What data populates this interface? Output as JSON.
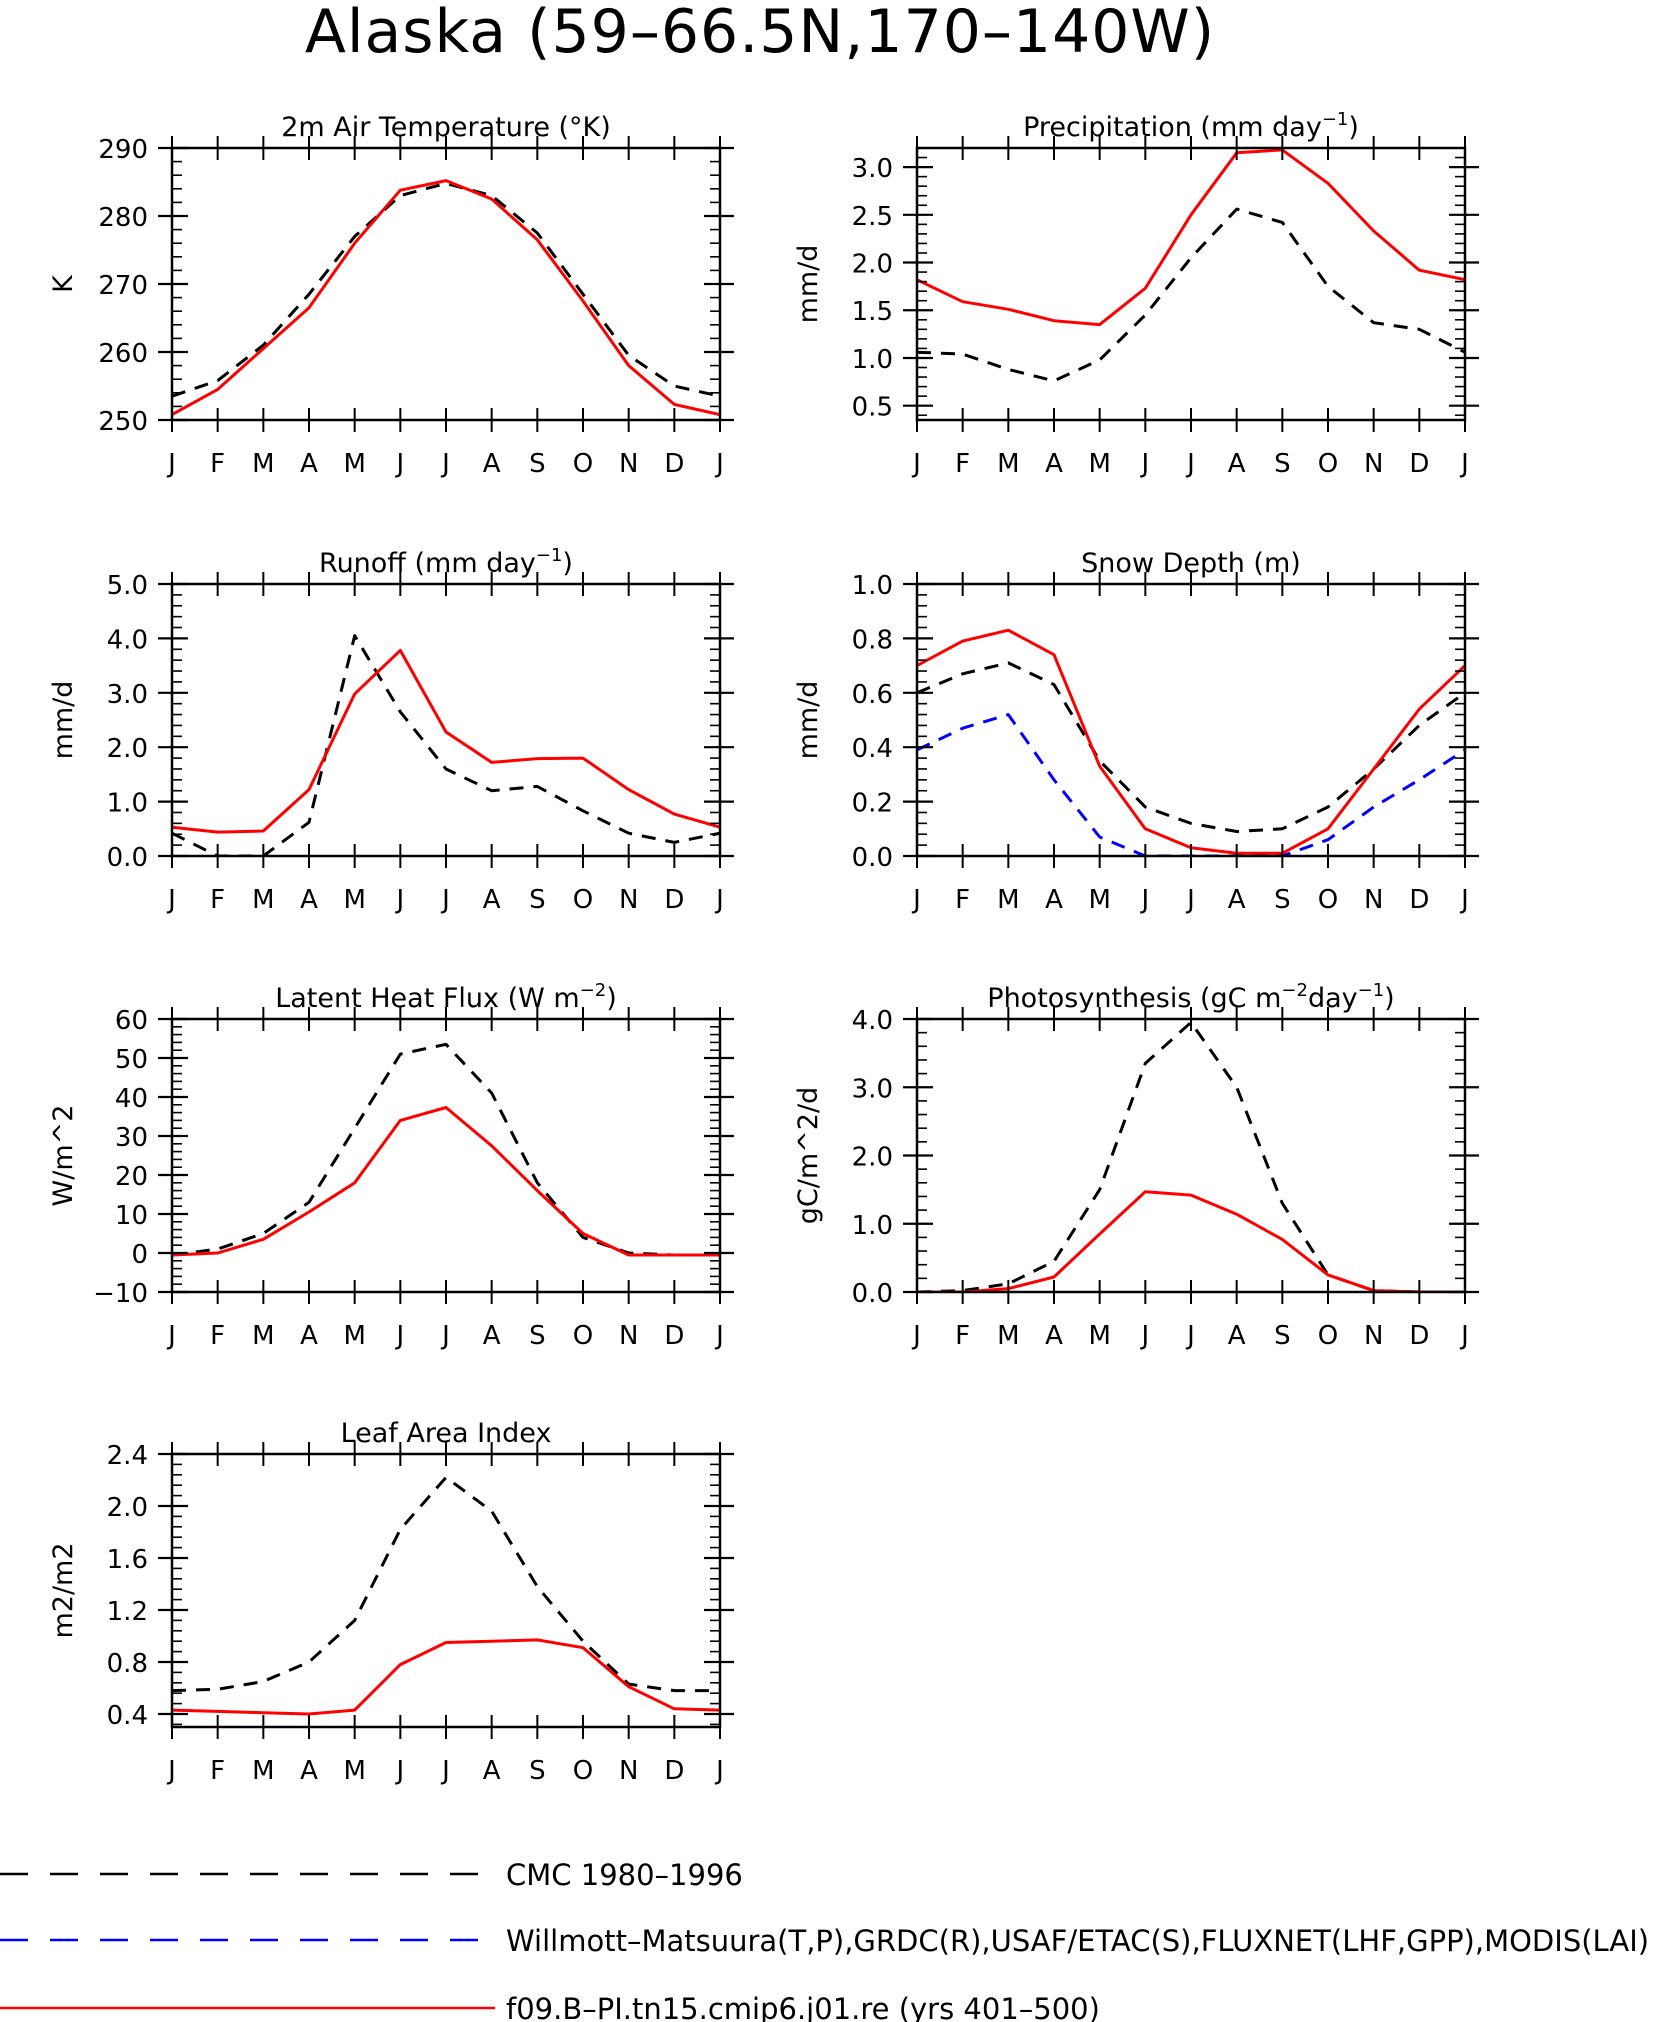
{
  "figure": {
    "title": "Alaska (59–66.5N,170–140W)"
  },
  "colors": {
    "obs": "#000000",
    "obs2": "#0000ff",
    "model": "#ff0000"
  },
  "chart_data": [
    {
      "type": "line",
      "title_main": "2m Air Temperature (°K)",
      "title_sup": "",
      "title_tail": "",
      "ylabel": "K",
      "x": [
        "J",
        "F",
        "M",
        "A",
        "M",
        "J",
        "J",
        "A",
        "S",
        "O",
        "N",
        "D",
        "J"
      ],
      "ylim": [
        250,
        290
      ],
      "yticks": [
        250,
        260,
        270,
        280,
        290
      ],
      "ytick_decimals": 0,
      "minor_step": 2,
      "series": [
        {
          "name": "CMC 1980–1996",
          "style": "dash",
          "color": "#000000",
          "values": [
            253.5,
            255.8,
            261.0,
            268.5,
            277.0,
            283.0,
            284.8,
            283.0,
            277.5,
            268.5,
            259.5,
            255.0,
            253.5
          ]
        },
        {
          "name": "f09.B–PI.tn15.cmip6.j01.re (yrs 401–500)",
          "style": "solid",
          "color": "#ff0000",
          "values": [
            250.8,
            254.5,
            260.5,
            266.5,
            276.0,
            283.8,
            285.2,
            282.5,
            276.5,
            267.5,
            258.0,
            252.3,
            250.8
          ]
        }
      ]
    },
    {
      "type": "line",
      "title_main": "Precipitation (mm day",
      "title_sup": "−1",
      "title_tail": ")",
      "ylabel": "mm/d",
      "x": [
        "J",
        "F",
        "M",
        "A",
        "M",
        "J",
        "J",
        "A",
        "S",
        "O",
        "N",
        "D",
        "J"
      ],
      "ylim": [
        0.35,
        3.2
      ],
      "yticks": [
        0.5,
        1.0,
        1.5,
        2.0,
        2.5,
        3.0
      ],
      "ytick_decimals": 1,
      "minor_step": 0.1,
      "series": [
        {
          "name": "CMC 1980–1996",
          "style": "dash",
          "color": "#000000",
          "values": [
            1.06,
            1.04,
            0.88,
            0.76,
            0.98,
            1.45,
            2.05,
            2.56,
            2.42,
            1.75,
            1.37,
            1.3,
            1.06
          ]
        },
        {
          "name": "f09.B–PI.tn15.cmip6.j01.re (yrs 401–500)",
          "style": "solid",
          "color": "#ff0000",
          "values": [
            1.82,
            1.59,
            1.51,
            1.39,
            1.35,
            1.73,
            2.5,
            3.15,
            3.18,
            2.83,
            2.33,
            1.92,
            1.82
          ]
        }
      ]
    },
    {
      "type": "line",
      "title_main": "Runoff (mm day",
      "title_sup": "−1",
      "title_tail": ")",
      "ylabel": "mm/d",
      "x": [
        "J",
        "F",
        "M",
        "A",
        "M",
        "J",
        "J",
        "A",
        "S",
        "O",
        "N",
        "D",
        "J"
      ],
      "ylim": [
        0,
        5
      ],
      "yticks": [
        0.0,
        1.0,
        2.0,
        3.0,
        4.0,
        5.0
      ],
      "ytick_decimals": 1,
      "minor_step": 0.2,
      "series": [
        {
          "name": "CMC 1980–1996",
          "style": "dash",
          "color": "#000000",
          "values": [
            0.42,
            0.0,
            0.0,
            0.62,
            4.05,
            2.65,
            1.6,
            1.2,
            1.28,
            0.83,
            0.42,
            0.25,
            0.42
          ]
        },
        {
          "name": "f09.B–PI.tn15.cmip6.j01.re (yrs 401–500)",
          "style": "solid",
          "color": "#ff0000",
          "values": [
            0.53,
            0.44,
            0.46,
            1.22,
            2.98,
            3.78,
            2.28,
            1.72,
            1.79,
            1.8,
            1.22,
            0.77,
            0.53
          ]
        }
      ]
    },
    {
      "type": "line",
      "title_main": "Snow Depth (m)",
      "title_sup": "",
      "title_tail": "",
      "ylabel": "mm/d",
      "x": [
        "J",
        "F",
        "M",
        "A",
        "M",
        "J",
        "J",
        "A",
        "S",
        "O",
        "N",
        "D",
        "J"
      ],
      "ylim": [
        0,
        1
      ],
      "yticks": [
        0.0,
        0.2,
        0.4,
        0.6,
        0.8,
        1.0
      ],
      "ytick_decimals": 1,
      "minor_step": 0.04,
      "series": [
        {
          "name": "CMC 1980–1996",
          "style": "dash",
          "color": "#000000",
          "values": [
            0.6,
            0.67,
            0.71,
            0.63,
            0.35,
            0.18,
            0.12,
            0.09,
            0.1,
            0.18,
            0.32,
            0.48,
            0.6
          ]
        },
        {
          "name": "Willmott–Matsuura(T,P),GRDC(R),USAF/ETAC(S),FLUXNET(LHF,GPP),MODIS(LAI)",
          "style": "dash",
          "color": "#0000ff",
          "values": [
            0.39,
            0.47,
            0.52,
            0.28,
            0.07,
            0.0,
            0.0,
            0.0,
            0.0,
            0.06,
            0.18,
            0.28,
            0.39
          ]
        },
        {
          "name": "f09.B–PI.tn15.cmip6.j01.re (yrs 401–500)",
          "style": "solid",
          "color": "#ff0000",
          "values": [
            0.7,
            0.79,
            0.83,
            0.74,
            0.33,
            0.1,
            0.03,
            0.01,
            0.01,
            0.1,
            0.32,
            0.54,
            0.7
          ]
        }
      ]
    },
    {
      "type": "line",
      "title_main": "Latent Heat Flux (W m",
      "title_sup": "−2",
      "title_tail": ")",
      "ylabel": "W/m^2",
      "x": [
        "J",
        "F",
        "M",
        "A",
        "M",
        "J",
        "J",
        "A",
        "S",
        "O",
        "N",
        "D",
        "J"
      ],
      "ylim": [
        -10,
        60
      ],
      "yticks": [
        -10,
        0,
        10,
        20,
        30,
        40,
        50,
        60
      ],
      "ytick_decimals": 0,
      "minor_step": 2,
      "series": [
        {
          "name": "CMC 1980–1996",
          "style": "dash",
          "color": "#000000",
          "values": [
            -0.5,
            1.0,
            5.0,
            13.0,
            32.0,
            51.0,
            53.5,
            41.0,
            18.0,
            4.0,
            0.0,
            -0.5,
            -0.5
          ]
        },
        {
          "name": "f09.B–PI.tn15.cmip6.j01.re (yrs 401–500)",
          "style": "solid",
          "color": "#ff0000",
          "values": [
            -0.5,
            0.0,
            3.5,
            10.5,
            18.0,
            34.0,
            37.3,
            27.5,
            16.0,
            5.0,
            -0.5,
            -0.5,
            -0.5
          ]
        }
      ]
    },
    {
      "type": "line",
      "title_main": "Photosynthesis (gC m",
      "title_sup": "−2",
      "title_tail": "day",
      "title_sup2": "−1",
      "title_tail2": ")",
      "ylabel": "gC/m^2/d",
      "x": [
        "J",
        "F",
        "M",
        "A",
        "M",
        "J",
        "J",
        "A",
        "S",
        "O",
        "N",
        "D",
        "J"
      ],
      "ylim": [
        0,
        4
      ],
      "yticks": [
        0.0,
        1.0,
        2.0,
        3.0,
        4.0
      ],
      "ytick_decimals": 1,
      "minor_step": 0.2,
      "series": [
        {
          "name": "CMC 1980–1996",
          "style": "dash",
          "color": "#000000",
          "values": [
            0.0,
            0.02,
            0.12,
            0.45,
            1.5,
            3.35,
            3.95,
            3.0,
            1.3,
            0.25,
            0.02,
            0.0,
            0.0
          ]
        },
        {
          "name": "f09.B–PI.tn15.cmip6.j01.re (yrs 401–500)",
          "style": "solid",
          "color": "#ff0000",
          "values": [
            0.0,
            0.0,
            0.05,
            0.22,
            0.85,
            1.47,
            1.42,
            1.14,
            0.77,
            0.25,
            0.02,
            0.0,
            0.0
          ]
        }
      ]
    },
    {
      "type": "line",
      "title_main": "Leaf Area Index",
      "title_sup": "",
      "title_tail": "",
      "ylabel": "m2/m2",
      "x": [
        "J",
        "F",
        "M",
        "A",
        "M",
        "J",
        "J",
        "A",
        "S",
        "O",
        "N",
        "D",
        "J"
      ],
      "ylim": [
        0.3,
        2.4
      ],
      "yticks": [
        0.4,
        0.8,
        1.2,
        1.6,
        2.0,
        2.4
      ],
      "ytick_decimals": 1,
      "minor_step": 0.08,
      "series": [
        {
          "name": "CMC 1980–1996",
          "style": "dash",
          "color": "#000000",
          "values": [
            0.58,
            0.59,
            0.65,
            0.8,
            1.12,
            1.82,
            2.22,
            1.96,
            1.38,
            0.96,
            0.63,
            0.58,
            0.58
          ]
        },
        {
          "name": "f09.B–PI.tn15.cmip6.j01.re (yrs 401–500)",
          "style": "solid",
          "color": "#ff0000",
          "values": [
            0.43,
            0.42,
            0.41,
            0.4,
            0.43,
            0.78,
            0.95,
            0.96,
            0.97,
            0.91,
            0.61,
            0.44,
            0.43
          ]
        }
      ]
    }
  ],
  "legend": [
    {
      "label": "CMC 1980–1996",
      "style": "dash",
      "color": "#000000"
    },
    {
      "label": "Willmott–Matsuura(T,P),GRDC(R),USAF/ETAC(S),FLUXNET(LHF,GPP),MODIS(LAI)",
      "style": "dash",
      "color": "#0000ff"
    },
    {
      "label": "f09.B–PI.tn15.cmip6.j01.re (yrs 401–500)",
      "style": "solid",
      "color": "#ff0000"
    }
  ]
}
